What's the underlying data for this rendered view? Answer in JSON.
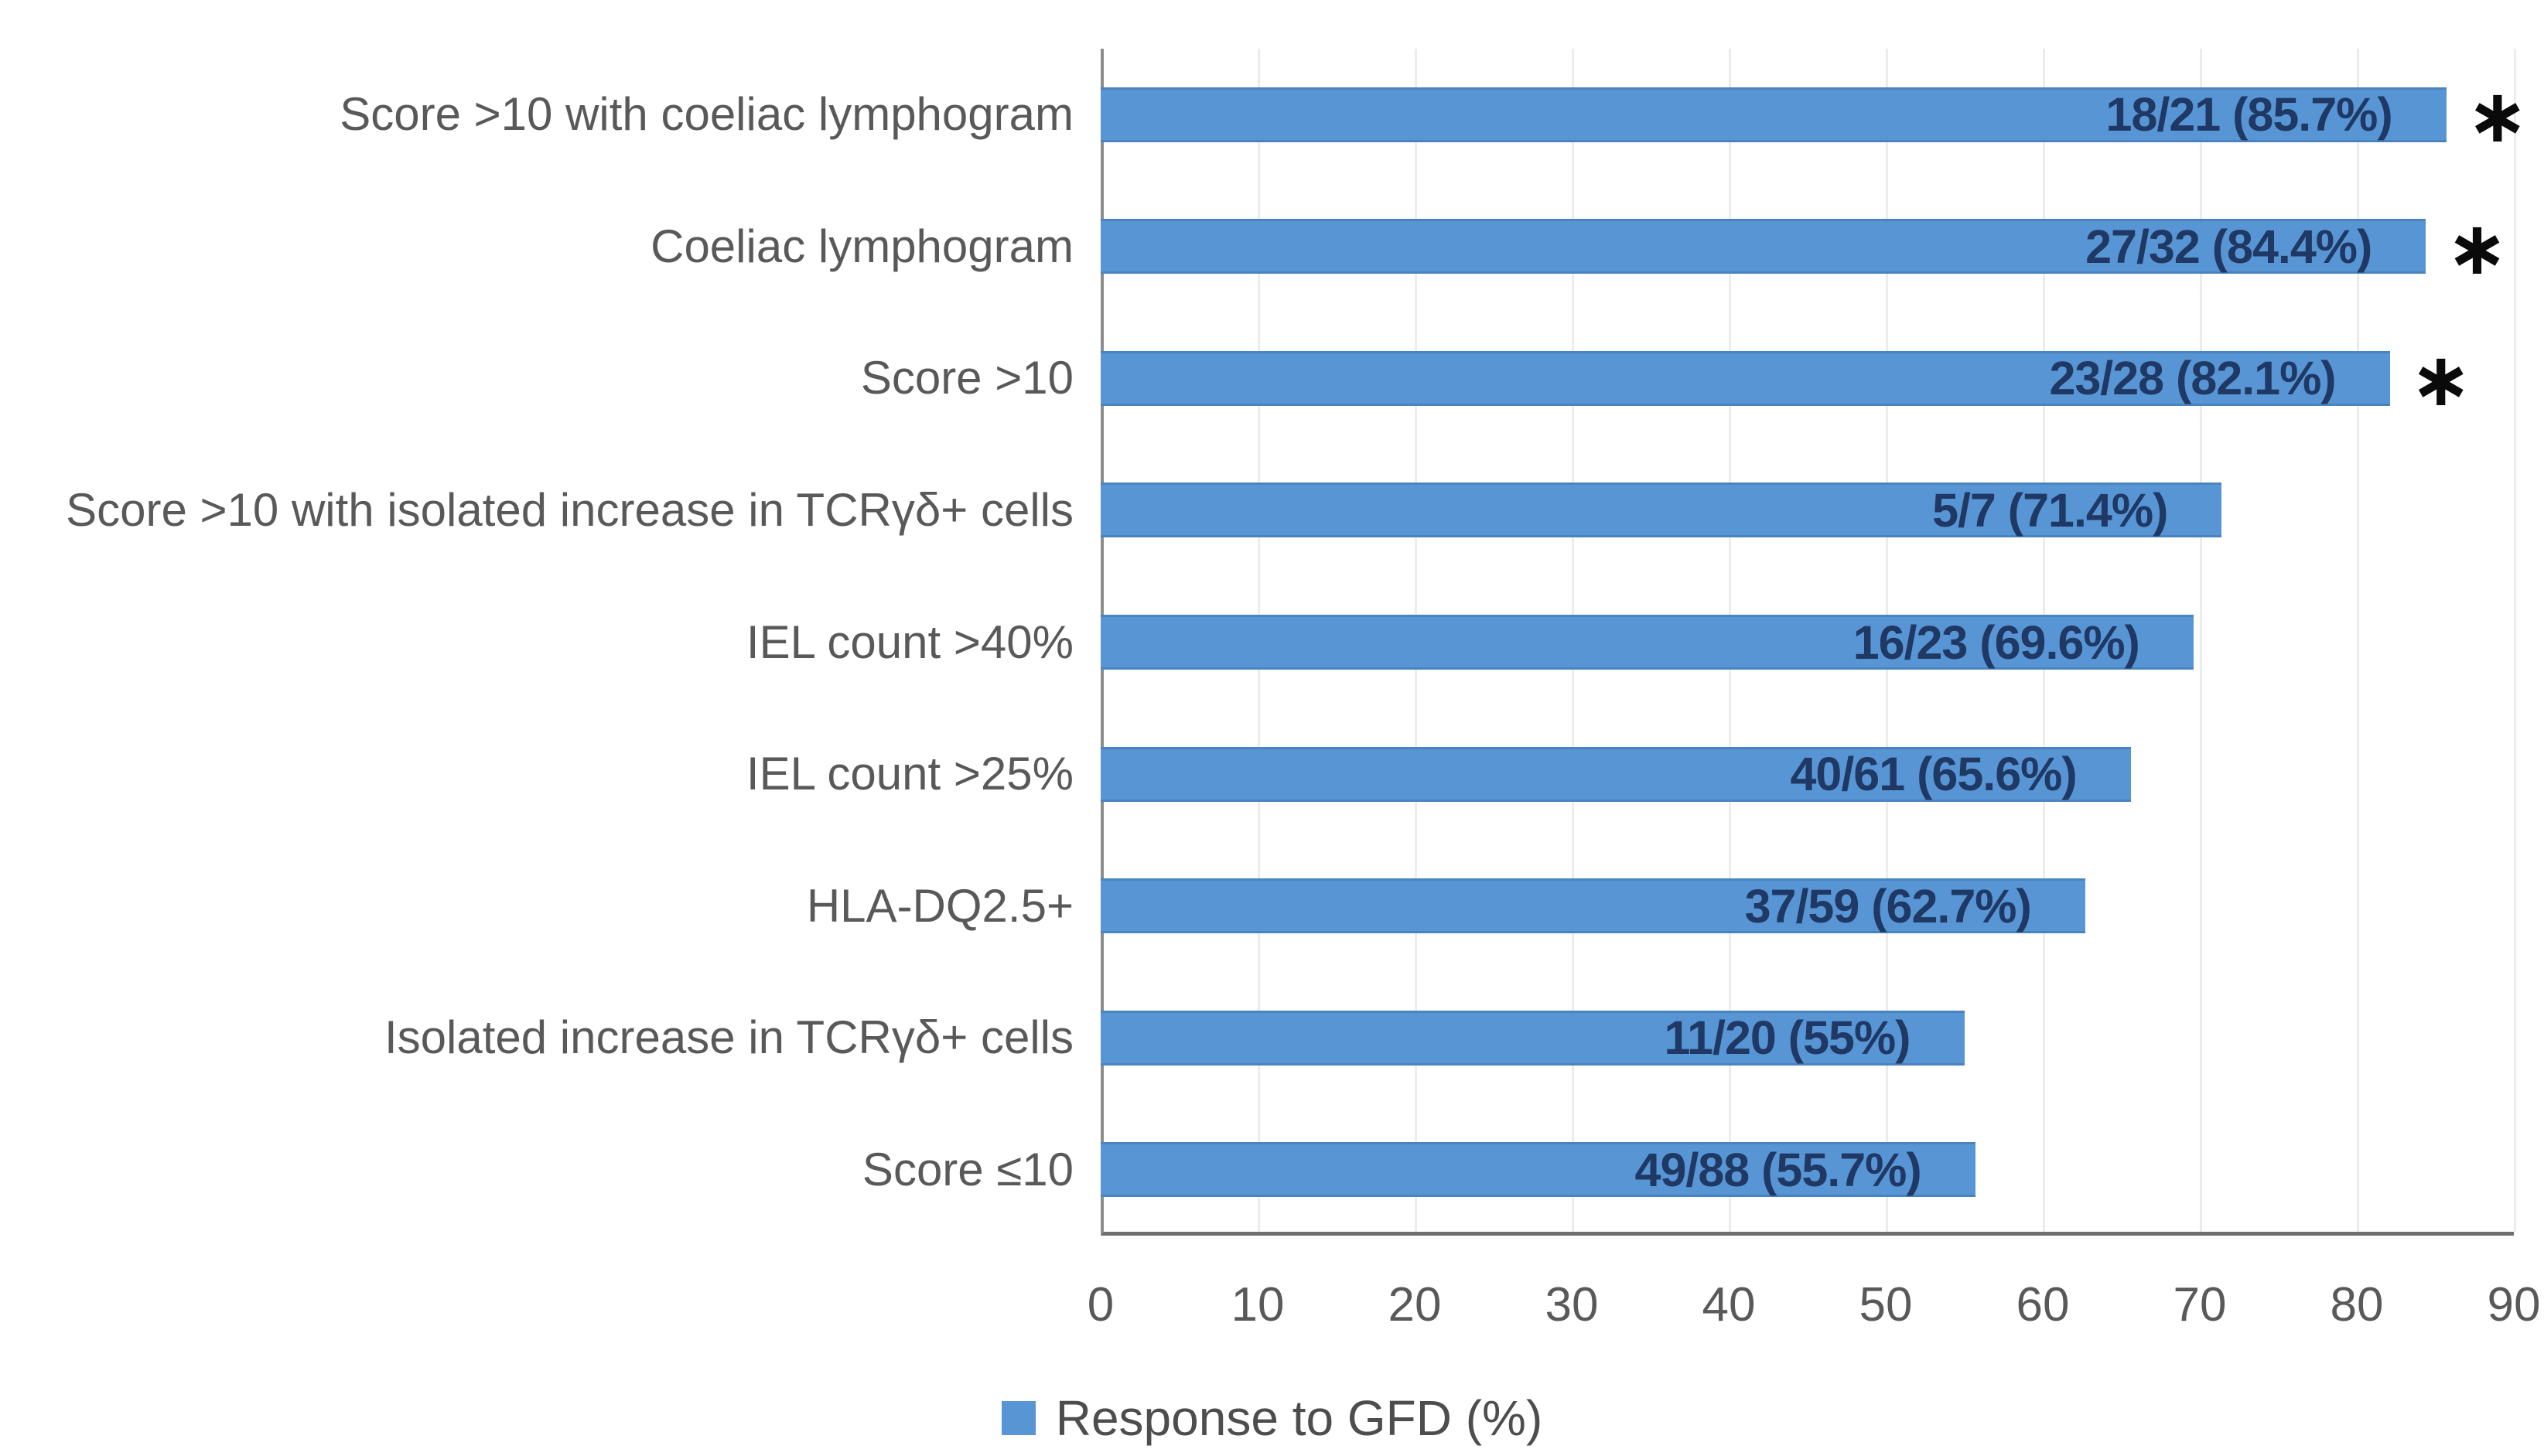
{
  "chart_data": {
    "type": "bar",
    "orientation": "horizontal",
    "title": "",
    "xlabel": "",
    "ylabel": "",
    "xlim": [
      0,
      90
    ],
    "x_ticks": [
      "0",
      "10",
      "20",
      "30",
      "40",
      "50",
      "60",
      "70",
      "80",
      "90"
    ],
    "grid": "vertical-light",
    "legend_position": "bottom-center",
    "legend": "Response to GFD (%)",
    "categories": [
      "Score >10 with coeliac lymphogram",
      "Coeliac lymphogram",
      "Score >10",
      "Score >10 with isolated increase in TCRγδ+ cells",
      "IEL count >40%",
      "IEL count >25%",
      "HLA-DQ2.5+",
      "Isolated increase in TCRγδ+ cells",
      "Score ≤10"
    ],
    "values": [
      85.7,
      84.4,
      82.1,
      71.4,
      69.6,
      65.6,
      62.7,
      55.0,
      55.7
    ],
    "bar_labels": [
      "18/21 (85.7%)",
      "27/32 (84.4%)",
      "23/28 (82.1%)",
      "5/7 (71.4%)",
      "16/23 (69.6%)",
      "40/61 (65.6%)",
      "37/59 (62.7%)",
      "11/20 (55%)",
      "49/88 (55.7%)"
    ],
    "significant": [
      true,
      true,
      true,
      false,
      false,
      false,
      false,
      false,
      false
    ],
    "significance_marker": "∗",
    "bar_color": "#5795d5",
    "bar_label_color": "#1f3864",
    "axis_text_color": "#595959",
    "marker_color": "#0a0a0a"
  }
}
